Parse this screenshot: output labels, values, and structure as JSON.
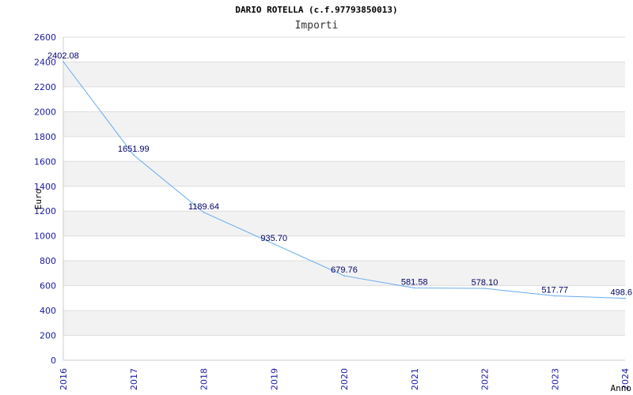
{
  "chart_data": {
    "type": "line",
    "title": "DARIO ROTELLA (c.f.97793850013)",
    "subtitle": "Importi",
    "xlabel": "Anno",
    "ylabel": "Euro",
    "categories": [
      "2016",
      "2017",
      "2018",
      "2019",
      "2020",
      "2021",
      "2022",
      "2023",
      "2024"
    ],
    "values": [
      2402.08,
      1651.99,
      1189.64,
      935.7,
      679.76,
      581.58,
      578.1,
      517.77,
      498.6
    ],
    "data_labels": [
      "2402.08",
      "1651.99",
      "1189.64",
      "935.70",
      "679.76",
      "581.58",
      "578.10",
      "517.77",
      "498.6"
    ],
    "ylim": [
      0,
      2600
    ],
    "yticks": [
      0,
      200,
      400,
      600,
      800,
      1000,
      1200,
      1400,
      1600,
      1800,
      2000,
      2200,
      2400,
      2600
    ],
    "grid": true,
    "colors": {
      "line": "#66aaee",
      "band": "#f2f2f2",
      "gridline": "#dddddd",
      "tick_text": "#1a1aa6",
      "label_text": "#000066"
    }
  }
}
